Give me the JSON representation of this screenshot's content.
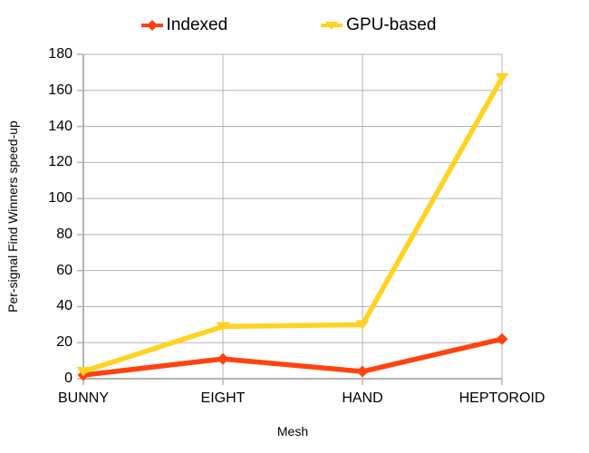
{
  "chart_data": {
    "type": "line",
    "title": "",
    "xlabel": "Mesh",
    "ylabel": "Per-signal Find Winners speed-up",
    "categories": [
      "BUNNY",
      "EIGHT",
      "HAND",
      "HEPTOROID"
    ],
    "series": [
      {
        "name": "Indexed",
        "color": "#ff420e",
        "marker": "diamond",
        "values": [
          2,
          11,
          4,
          22
        ]
      },
      {
        "name": "GPU-based",
        "color": "#ffd320",
        "marker": "triangle-down",
        "values": [
          4,
          29,
          30,
          167
        ]
      }
    ],
    "ylim": [
      0,
      180
    ],
    "ytick_step": 20,
    "yticks": [
      0,
      20,
      40,
      60,
      80,
      100,
      120,
      140,
      160,
      180
    ],
    "grid": true,
    "legend_position": "top",
    "gridline_color": "#b3b3b3",
    "axis_color": "#b3b3b3",
    "text_color": "#000000",
    "background_color": "#ffffff",
    "line_width": 5.5
  }
}
